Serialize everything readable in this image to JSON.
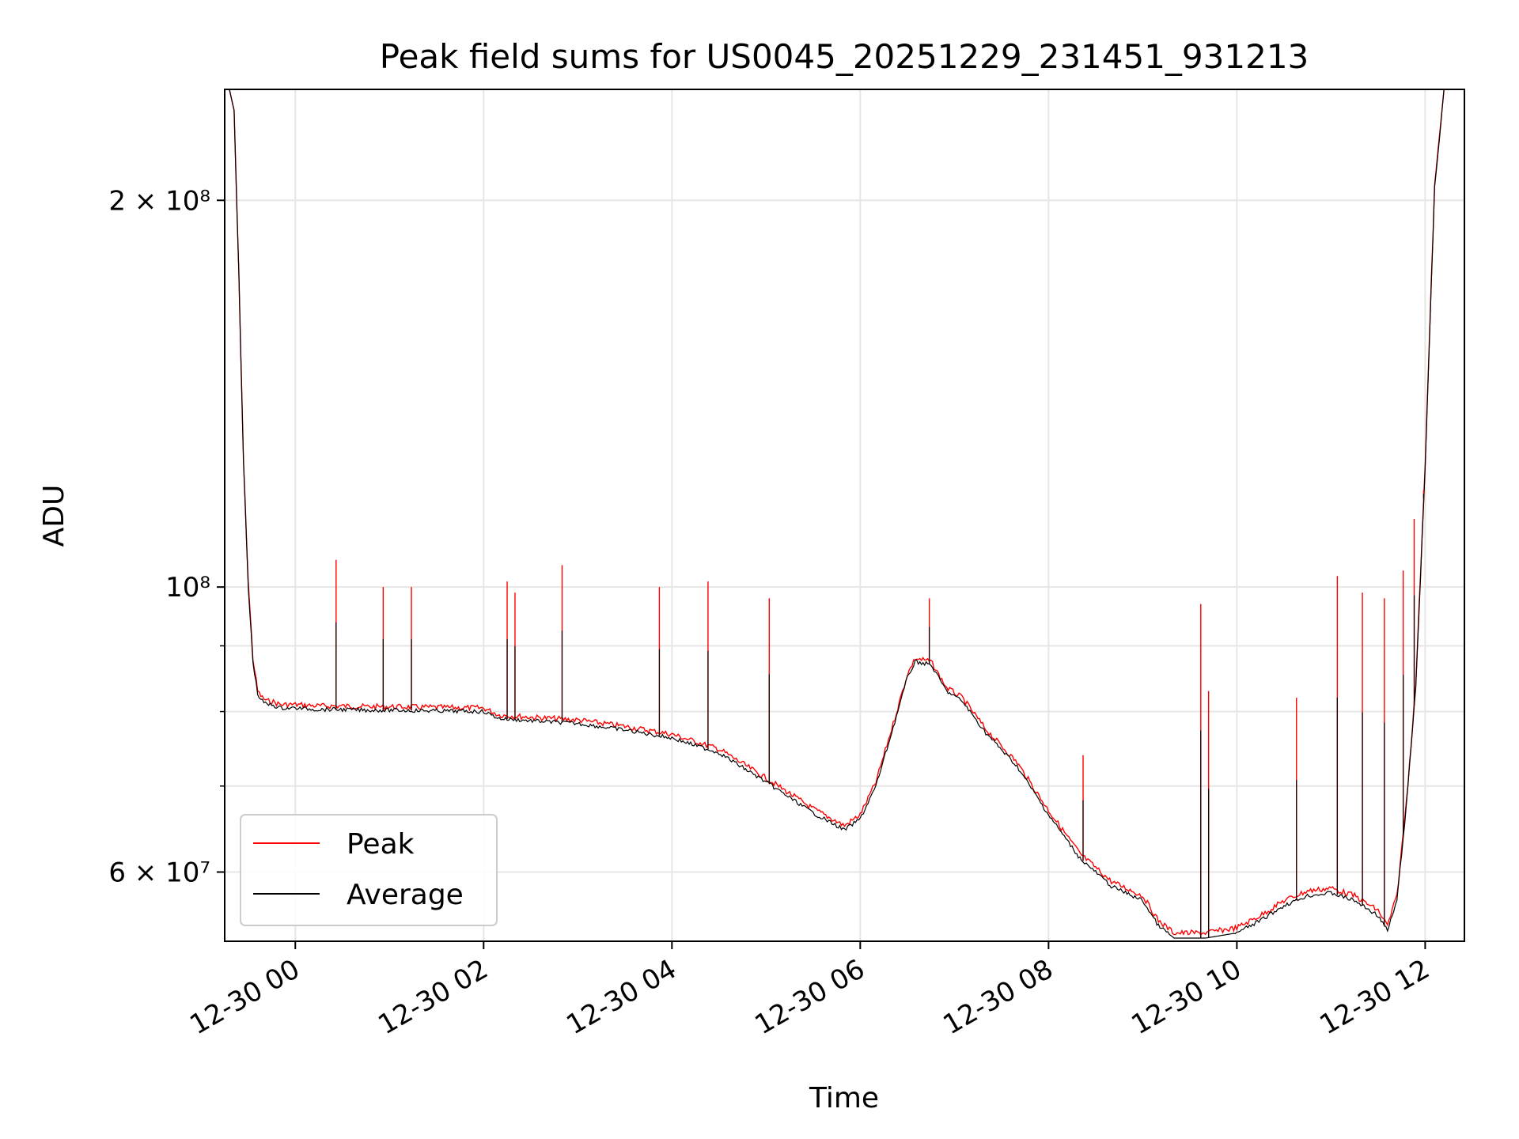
{
  "chart_data": {
    "type": "line",
    "title": "Peak field sums for US0045_20251229_231451_931213",
    "xlabel": "Time",
    "ylabel": "ADU",
    "y_scale": "log",
    "xlim": [
      "2025-12-29T23:15",
      "2025-12-30T12:25"
    ],
    "ylim": [
      53000000,
      244000000
    ],
    "grid": true,
    "legend": {
      "placement": "lower-left"
    },
    "x_ticks": [
      {
        "value": "2025-12-30T00:00",
        "label": "12-30 00"
      },
      {
        "value": "2025-12-30T02:00",
        "label": "12-30 02"
      },
      {
        "value": "2025-12-30T04:00",
        "label": "12-30 04"
      },
      {
        "value": "2025-12-30T06:00",
        "label": "12-30 06"
      },
      {
        "value": "2025-12-30T08:00",
        "label": "12-30 08"
      },
      {
        "value": "2025-12-30T10:00",
        "label": "12-30 10"
      },
      {
        "value": "2025-12-30T12:00",
        "label": "12-30 12"
      }
    ],
    "y_ticks": [
      {
        "value": 60000000,
        "label": "6 × 10⁷"
      },
      {
        "value": 100000000,
        "label": "10⁸"
      },
      {
        "value": 200000000,
        "label": "2 × 10⁸"
      }
    ],
    "y_minor_ticks": [
      70000000,
      80000000,
      90000000
    ],
    "x": [
      "2025-12-29T23:15",
      "2025-12-29T23:18",
      "2025-12-29T23:21",
      "2025-12-29T23:24",
      "2025-12-29T23:27",
      "2025-12-29T23:30",
      "2025-12-29T23:33",
      "2025-12-29T23:36",
      "2025-12-29T23:39",
      "2025-12-29T23:42",
      "2025-12-29T23:45",
      "2025-12-29T23:48",
      "2025-12-29T23:51",
      "2025-12-29T23:54",
      "2025-12-29T23:57",
      "2025-12-30T00:00",
      "2025-12-30T00:15",
      "2025-12-30T00:30",
      "2025-12-30T00:45",
      "2025-12-30T01:00",
      "2025-12-30T01:30",
      "2025-12-30T02:00",
      "2025-12-30T02:10",
      "2025-12-30T02:30",
      "2025-12-30T03:00",
      "2025-12-30T03:30",
      "2025-12-30T04:00",
      "2025-12-30T04:30",
      "2025-12-30T05:00",
      "2025-12-30T05:30",
      "2025-12-30T05:50",
      "2025-12-30T06:00",
      "2025-12-30T06:10",
      "2025-12-30T06:20",
      "2025-12-30T06:30",
      "2025-12-30T06:35",
      "2025-12-30T06:45",
      "2025-12-30T06:55",
      "2025-12-30T07:05",
      "2025-12-30T07:20",
      "2025-12-30T07:40",
      "2025-12-30T08:00",
      "2025-12-30T08:20",
      "2025-12-30T08:40",
      "2025-12-30T09:00",
      "2025-12-30T09:10",
      "2025-12-30T09:20",
      "2025-12-30T09:40",
      "2025-12-30T10:00",
      "2025-12-30T10:15",
      "2025-12-30T10:30",
      "2025-12-30T10:45",
      "2025-12-30T11:00",
      "2025-12-30T11:15",
      "2025-12-30T11:30",
      "2025-12-30T11:36",
      "2025-12-30T11:42",
      "2025-12-30T11:48",
      "2025-12-30T11:54",
      "2025-12-30T12:00",
      "2025-12-30T12:06",
      "2025-12-30T12:12",
      "2025-12-30T12:18",
      "2025-12-30T12:25"
    ],
    "series": [
      {
        "name": "Peak",
        "color": "#ff0000",
        "values": [
          244000000,
          244000000,
          235000000,
          175000000,
          125000000,
          101000000,
          88000000,
          83000000,
          82000000,
          81500000,
          81500000,
          81200000,
          81000000,
          81000000,
          81000000,
          81000000,
          80800000,
          80800000,
          80700000,
          80700000,
          80600000,
          80500000,
          79500000,
          79200000,
          78800000,
          77900000,
          76800000,
          74800000,
          71000000,
          67200000,
          65200000,
          66500000,
          70500000,
          77500000,
          85500000,
          88000000,
          87500000,
          83500000,
          82000000,
          77500000,
          73000000,
          67000000,
          62000000,
          59000000,
          57500000,
          55000000,
          53800000,
          53800000,
          54300000,
          55500000,
          57000000,
          58000000,
          58300000,
          57500000,
          56000000,
          54500000,
          57500000,
          68000000,
          84000000,
          125000000,
          205000000,
          244000000,
          244000000,
          244000000
        ]
      },
      {
        "name": "Average",
        "color": "#000000",
        "values": [
          244000000,
          244000000,
          235000000,
          175000000,
          125000000,
          100000000,
          87500000,
          82500000,
          81500000,
          81000000,
          81000000,
          80700000,
          80500000,
          80500000,
          80500000,
          80500000,
          80300000,
          80300000,
          80200000,
          80200000,
          80100000,
          80000000,
          79000000,
          78700000,
          78300000,
          77400000,
          76300000,
          74300000,
          70500000,
          66700000,
          64700000,
          66000000,
          70000000,
          77000000,
          85000000,
          87500000,
          87000000,
          83000000,
          81500000,
          77000000,
          72500000,
          66500000,
          61500000,
          58500000,
          57000000,
          54500000,
          53300000,
          53300000,
          53800000,
          55000000,
          56500000,
          57500000,
          57800000,
          57000000,
          55500000,
          54000000,
          57000000,
          67500000,
          83500000,
          124000000,
          204000000,
          244000000,
          244000000,
          244000000
        ]
      }
    ],
    "peak_spikes": [
      {
        "x": "2025-12-30T00:26",
        "value": 105000000
      },
      {
        "x": "2025-12-30T00:56",
        "value": 100000000
      },
      {
        "x": "2025-12-30T01:14",
        "value": 100000000
      },
      {
        "x": "2025-12-30T02:15",
        "value": 101000000
      },
      {
        "x": "2025-12-30T02:20",
        "value": 99000000
      },
      {
        "x": "2025-12-30T02:50",
        "value": 104000000
      },
      {
        "x": "2025-12-30T03:52",
        "value": 100000000
      },
      {
        "x": "2025-12-30T04:23",
        "value": 101000000
      },
      {
        "x": "2025-12-30T05:02",
        "value": 98000000
      },
      {
        "x": "2025-12-30T06:44",
        "value": 98000000
      },
      {
        "x": "2025-12-30T08:22",
        "value": 74000000
      },
      {
        "x": "2025-12-30T09:37",
        "value": 97000000
      },
      {
        "x": "2025-12-30T09:42",
        "value": 83000000
      },
      {
        "x": "2025-12-30T10:38",
        "value": 82000000
      },
      {
        "x": "2025-12-30T11:04",
        "value": 102000000
      },
      {
        "x": "2025-12-30T11:20",
        "value": 99000000
      },
      {
        "x": "2025-12-30T11:34",
        "value": 98000000
      },
      {
        "x": "2025-12-30T11:46",
        "value": 103000000
      },
      {
        "x": "2025-12-30T11:53",
        "value": 113000000
      },
      {
        "x": "2025-12-30T11:59",
        "value": 119000000
      }
    ]
  }
}
